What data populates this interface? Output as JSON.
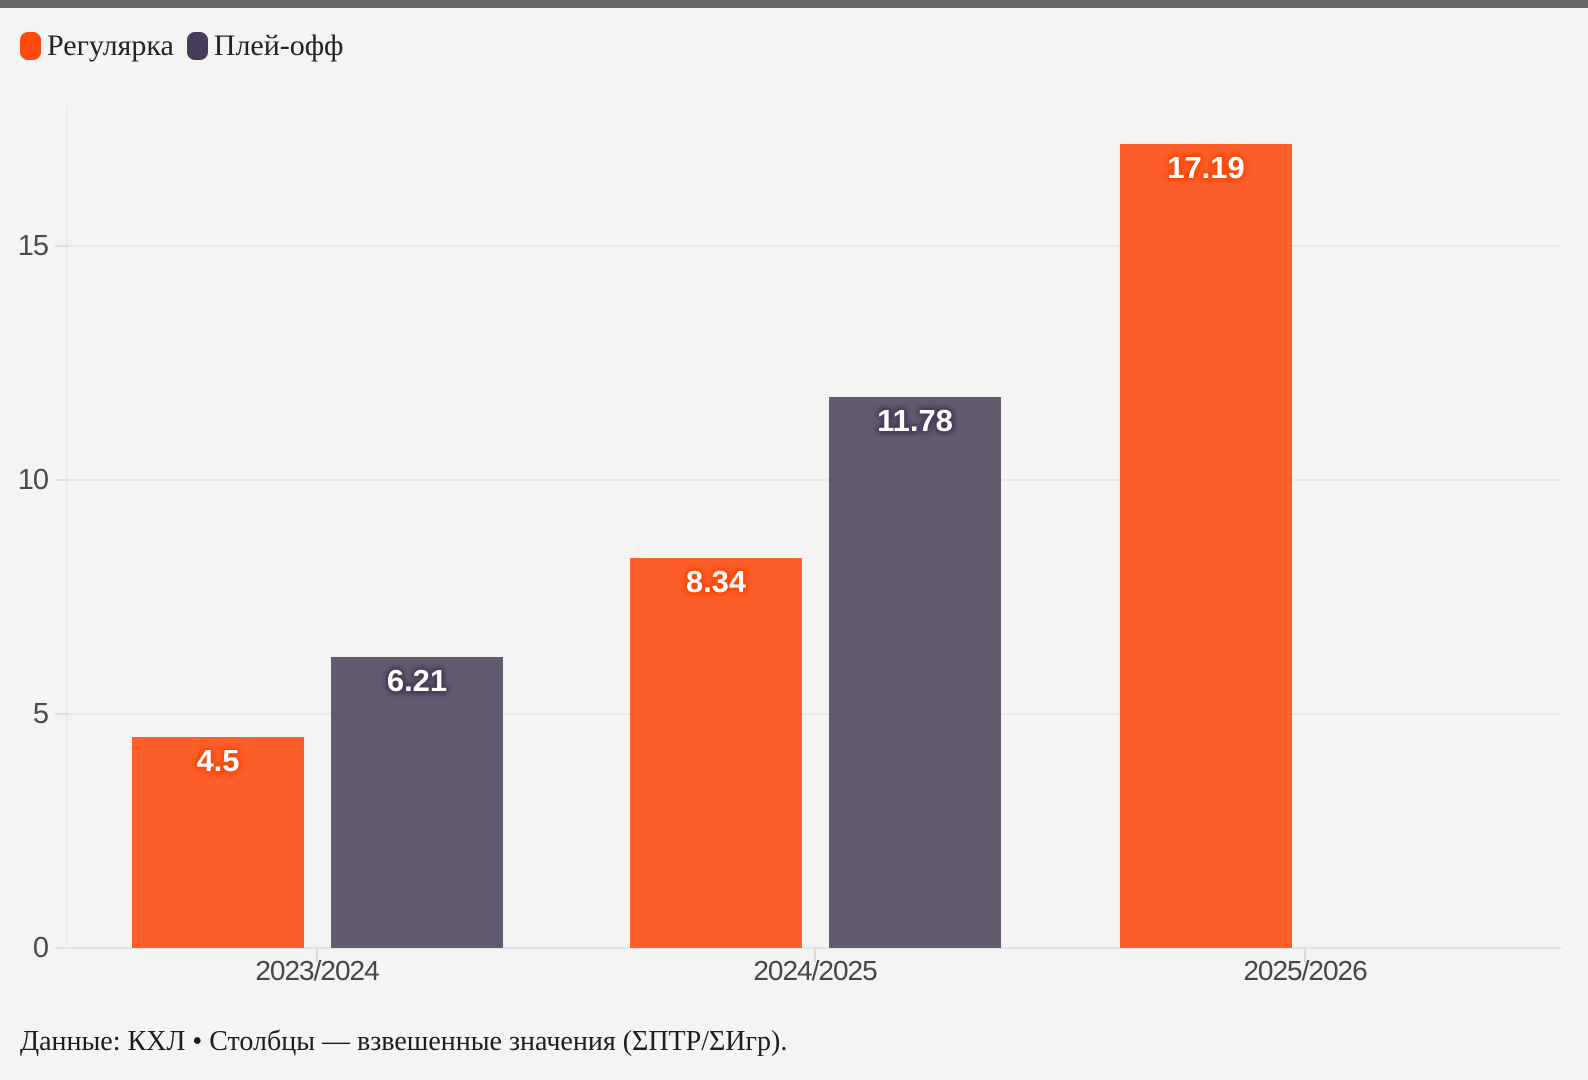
{
  "page": {
    "background_color": "#f4f4f5",
    "topbar_color": "#67676a"
  },
  "legend": {
    "position": "top-left"
  },
  "footer": {
    "text": "Данные: КХЛ • Столбцы — взвешенные значения (ΣПТР/ΣИгр)."
  },
  "chart_data": {
    "type": "bar",
    "title": "",
    "xlabel": "",
    "ylabel": "",
    "categories": [
      "2023/2024",
      "2024/2025",
      "2025/2026"
    ],
    "series": [
      {
        "name": "Регулярка",
        "color": "#fc5f2a",
        "swatch_color": "#fb4a0b",
        "values": [
          4.5,
          8.34,
          17.19
        ]
      },
      {
        "name": "Плей-офф",
        "color": "#625b6f",
        "swatch_color": "#473d59",
        "values": [
          6.21,
          11.78,
          null
        ]
      }
    ],
    "value_labels": [
      "4.5",
      "6.21",
      "8.34",
      "11.78",
      "17.19"
    ],
    "yticks": [
      0,
      5,
      10,
      15
    ],
    "ylim": [
      0,
      17.5
    ],
    "grid": "horizontal",
    "legend_position": "top-left",
    "value_label_style": "white text with series-colored glow, inside top of bar"
  }
}
